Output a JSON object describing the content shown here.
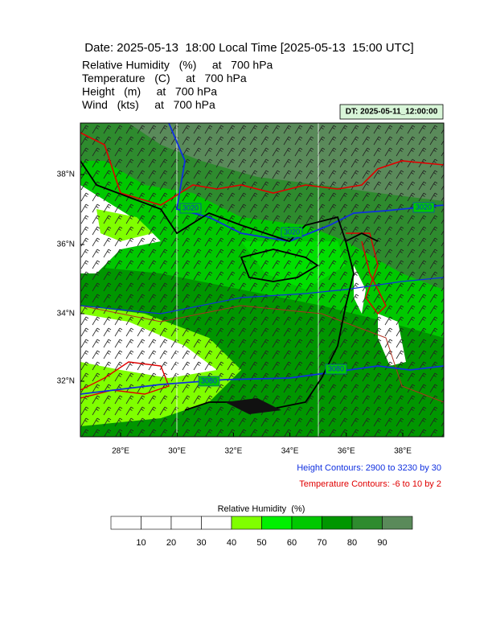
{
  "header": {
    "title": "Date: 2025-05-13  18:00 Local Time [2025-05-13  15:00 UTC]",
    "fields": [
      "Relative Humidity   (%)     at   700 hPa",
      "Temperature   (C)     at   700 hPa",
      "Height   (m)     at   700 hPa",
      "Wind   (kts)     at   700 hPa"
    ]
  },
  "dt_label": "DT: 2025-05-11_12:00:00",
  "map": {
    "lat_labels": [
      "38°N",
      "36°N",
      "34°N",
      "32°N"
    ],
    "lon_labels": [
      "28°E",
      "30°E",
      "32°E",
      "34°E",
      "36°E",
      "38°E"
    ],
    "contour_labels": [
      "3020",
      "3020",
      "3020",
      "3080",
      "3080"
    ]
  },
  "notes": [
    "Height Contours: 2900 to 3230 by 30",
    "Temperature Contours: -6 to 10 by 2"
  ],
  "colorbar": {
    "title": "Relative Humidity  (%)",
    "labels": [
      "10",
      "20",
      "30",
      "40",
      "50",
      "60",
      "70",
      "80",
      "90"
    ],
    "colors": [
      "#ffffff",
      "#ffffff",
      "#ffffff",
      "#ffffff",
      "#80ff00",
      "#00f000",
      "#00c800",
      "#009600",
      "#2e8b2e",
      "#5a8a5a"
    ]
  }
}
